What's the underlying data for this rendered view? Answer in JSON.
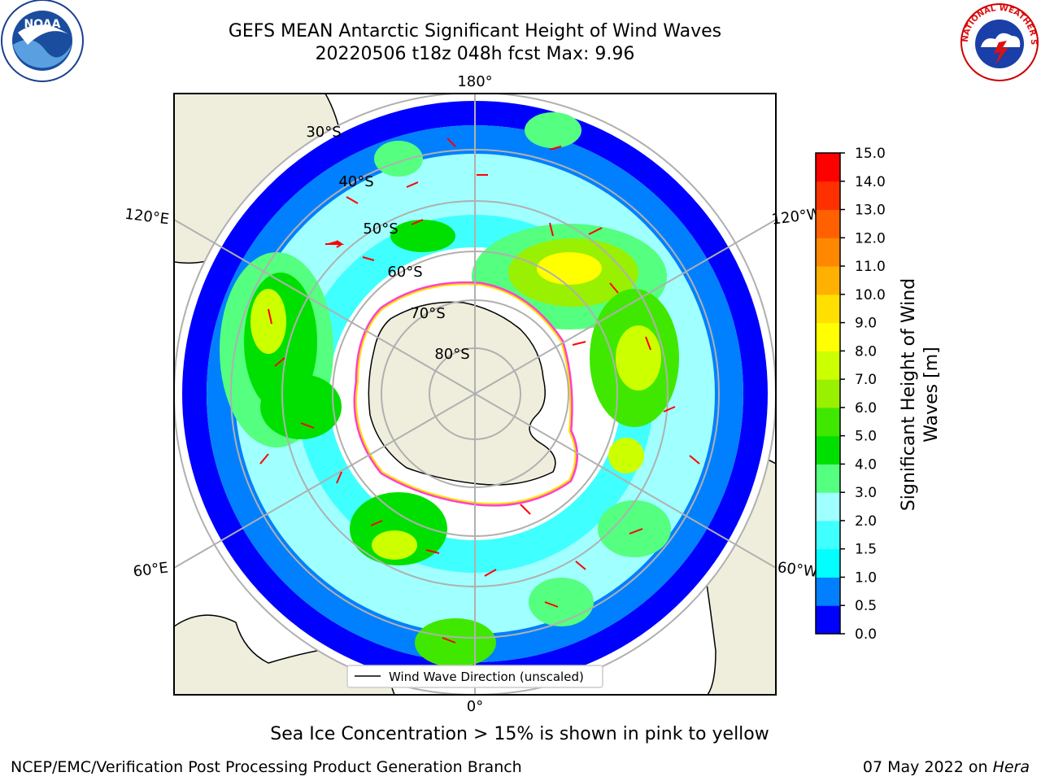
{
  "title": {
    "line1": "GEFS MEAN Antarctic Significant Height of Wind Waves",
    "line2": "20220506 t18z 048h fcst   Max: 9.96"
  },
  "map": {
    "longitude_labels": [
      "180°",
      "120°E",
      "120°W",
      "60°E",
      "60°W",
      "0°"
    ],
    "latitude_labels": [
      "30°S",
      "40°S",
      "50°S",
      "60°S",
      "70°S",
      "80°S"
    ],
    "legend_label": "Wind Wave Direction (unscaled)",
    "arrow_color": "#ff0000",
    "land_color": "#efeedc"
  },
  "colorbar": {
    "label_line1": "Significant Height of Wind",
    "label_line2": "Waves [m]",
    "ticks": [
      "0.0",
      "0.5",
      "1.0",
      "1.5",
      "2.0",
      "3.0",
      "4.0",
      "5.0",
      "6.0",
      "7.0",
      "8.0",
      "9.0",
      "10.0",
      "11.0",
      "12.0",
      "13.0",
      "14.0",
      "15.0"
    ],
    "colors": [
      "#0000ff",
      "#0080ff",
      "#00ffff",
      "#40ffff",
      "#a0ffff",
      "#55ff7f",
      "#00e000",
      "#40e800",
      "#99f000",
      "#ccff00",
      "#ffff00",
      "#ffe000",
      "#ffb000",
      "#ff8800",
      "#ff6000",
      "#ff3000",
      "#ff0000"
    ]
  },
  "note": "Sea Ice Concentration > 15% is shown in pink to yellow",
  "footer": {
    "left": "NCEP/EMC/Verification Post Processing Product Generation Branch",
    "right_prefix": "07 May 2022 on ",
    "right_host": "Hera"
  },
  "logos": {
    "noaa_text": "NOAA",
    "nws_text": "NATIONAL WEATHER SERVICE"
  }
}
